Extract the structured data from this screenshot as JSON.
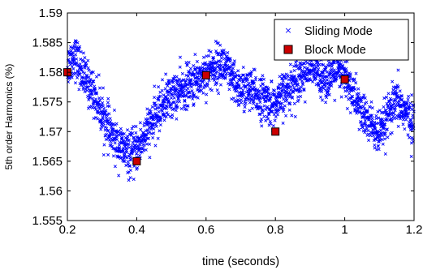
{
  "chart_data": {
    "type": "scatter",
    "xlabel": "time (seconds)",
    "ylabel": "5th order Harmonics (%)",
    "xlim": [
      0.2,
      1.2
    ],
    "ylim": [
      1.555,
      1.59
    ],
    "x_ticks": [
      "0.2",
      "0.4",
      "0.6",
      "0.8",
      "1",
      "1.2"
    ],
    "y_ticks": [
      "1.555",
      "1.56",
      "1.565",
      "1.57",
      "1.575",
      "1.58",
      "1.585",
      "1.59"
    ],
    "grid": false,
    "legend_position": "top-right",
    "series": [
      {
        "name": "Sliding Mode",
        "marker": "x",
        "color": "#0000ff",
        "trend_x": [
          0.2,
          0.22,
          0.25,
          0.28,
          0.3,
          0.33,
          0.36,
          0.38,
          0.4,
          0.42,
          0.45,
          0.48,
          0.5,
          0.53,
          0.56,
          0.6,
          0.63,
          0.65,
          0.68,
          0.7,
          0.72,
          0.75,
          0.78,
          0.8,
          0.82,
          0.85,
          0.88,
          0.9,
          0.92,
          0.95,
          0.98,
          1.0,
          1.02,
          1.05,
          1.08,
          1.1,
          1.12,
          1.15,
          1.18,
          1.2
        ],
        "trend_y": [
          1.581,
          1.583,
          1.579,
          1.576,
          1.573,
          1.569,
          1.567,
          1.566,
          1.567,
          1.569,
          1.572,
          1.575,
          1.576,
          1.577,
          1.578,
          1.58,
          1.581,
          1.5815,
          1.578,
          1.577,
          1.577,
          1.576,
          1.575,
          1.574,
          1.576,
          1.578,
          1.58,
          1.581,
          1.58,
          1.579,
          1.58,
          1.579,
          1.577,
          1.573,
          1.571,
          1.569,
          1.572,
          1.575,
          1.573,
          1.571
        ],
        "spread": 0.0036,
        "point_count": 2200
      },
      {
        "name": "Block Mode",
        "marker": "square",
        "color": "#cc0000",
        "x": [
          0.2,
          0.4,
          0.6,
          0.8,
          1.0
        ],
        "y": [
          1.58,
          1.565,
          1.5795,
          1.57,
          1.5788
        ]
      }
    ]
  }
}
